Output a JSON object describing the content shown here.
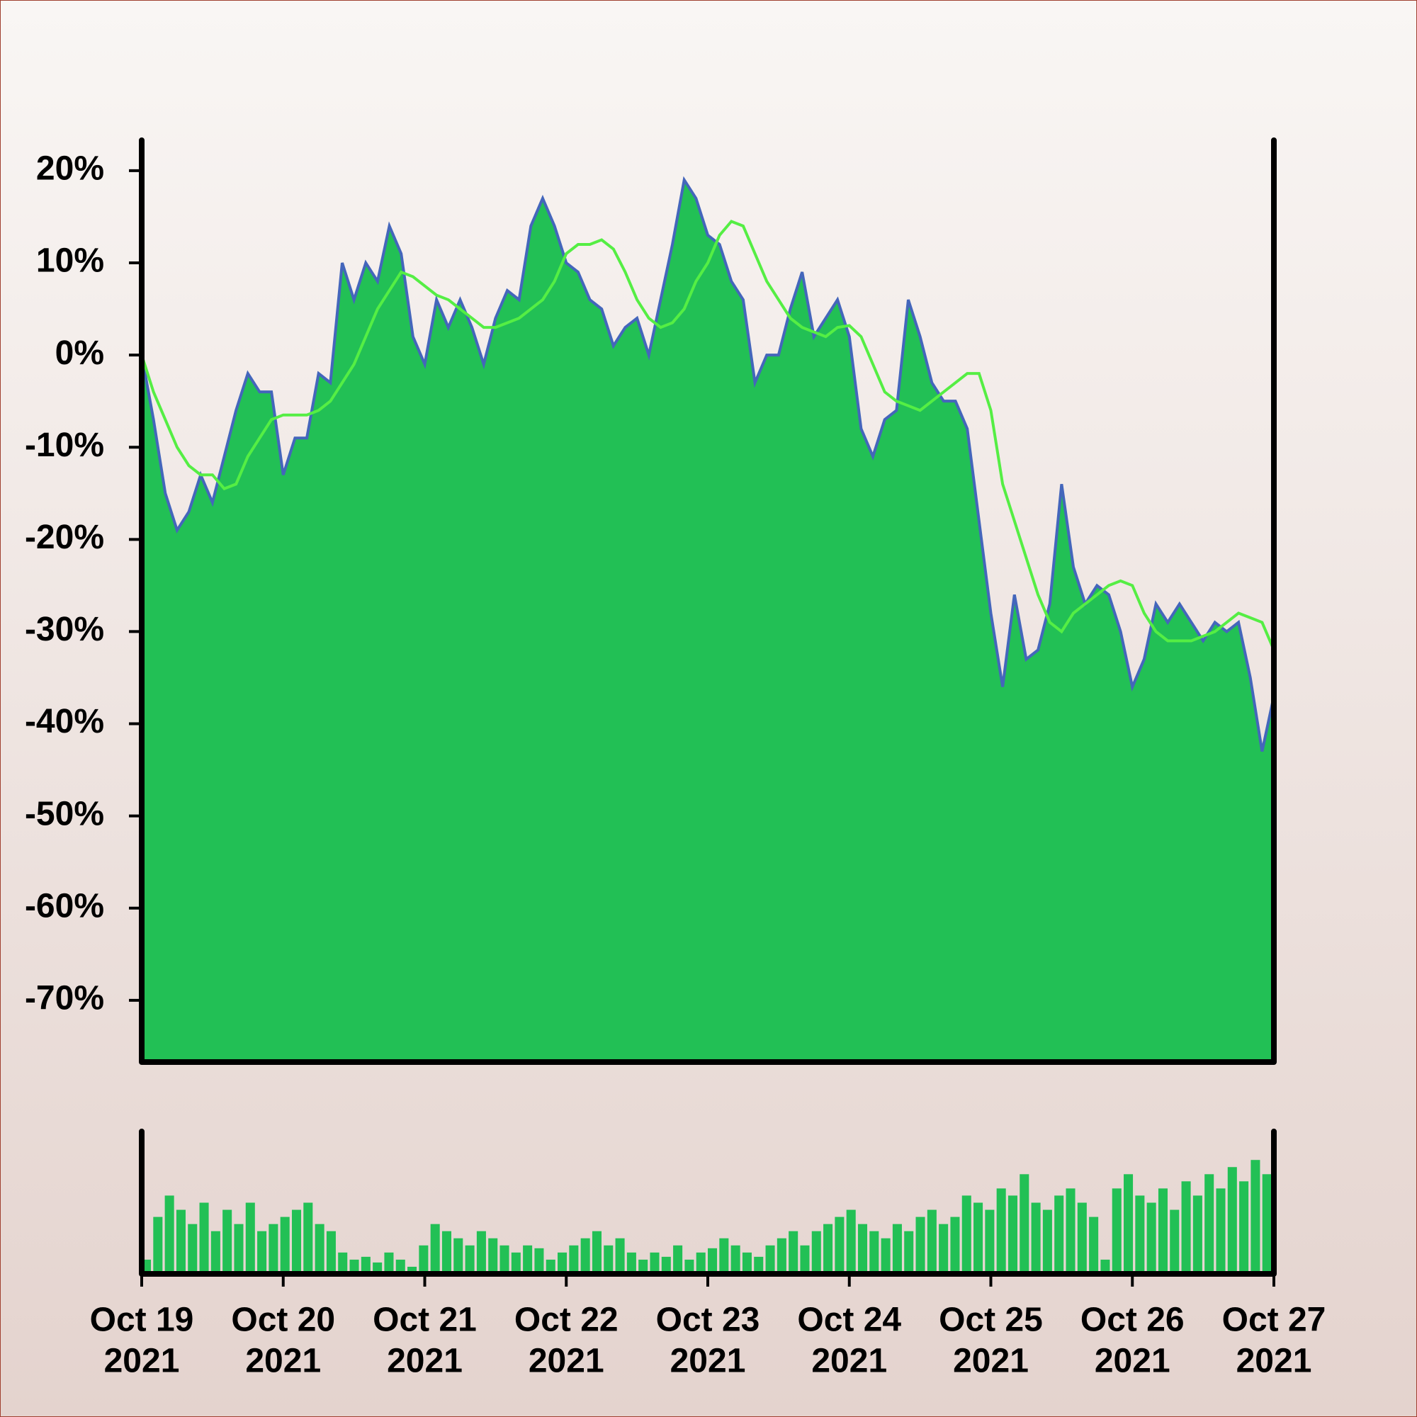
{
  "chart_data": [
    {
      "type": "area",
      "ylim": [
        -76.7,
        23.3
      ],
      "yticks": [
        {
          "value": 20,
          "label": "20%"
        },
        {
          "value": 10,
          "label": "10%"
        },
        {
          "value": 0,
          "label": "0%"
        },
        {
          "value": -10,
          "label": "-10%"
        },
        {
          "value": -20,
          "label": "-20%"
        },
        {
          "value": -30,
          "label": "-30%"
        },
        {
          "value": -40,
          "label": "-40%"
        },
        {
          "value": -50,
          "label": "-50%"
        },
        {
          "value": -60,
          "label": "-60%"
        },
        {
          "value": -70,
          "label": "-70%"
        }
      ],
      "color": "#22c055",
      "line_color": "#4466bb",
      "ma_color": "#55ee44",
      "values": [
        0,
        -7,
        -15,
        -19,
        -17,
        -13,
        -16,
        -11,
        -6,
        -2,
        -4,
        -4,
        -13,
        -9,
        -9,
        -2,
        -3,
        10,
        6,
        10,
        8,
        14,
        11,
        2,
        -1,
        6,
        3,
        6,
        3,
        -1,
        4,
        7,
        6,
        14,
        17,
        14,
        10,
        9,
        6,
        5,
        1,
        3,
        4,
        0,
        6,
        12,
        19,
        17,
        13,
        12,
        8,
        6,
        -3,
        0,
        0,
        5,
        9,
        2,
        4,
        6,
        2,
        -8,
        -11,
        -7,
        -6,
        6,
        2,
        -3,
        -5,
        -5,
        -8,
        -18,
        -28,
        -36,
        -26,
        -33,
        -32,
        -27,
        -14,
        -23,
        -27,
        -25,
        -26,
        -30,
        -36,
        -33,
        -27,
        -29,
        -27,
        -29,
        -31,
        -29,
        -30,
        -29,
        -35,
        -43,
        -37
      ],
      "ma_values": [
        0,
        -4,
        -7,
        -10,
        -12,
        -13,
        -13,
        -14.5,
        -14,
        -11,
        -9,
        -7,
        -6.5,
        -6.5,
        -6.5,
        -6,
        -5,
        -3,
        -1,
        2,
        5,
        7,
        9,
        8.5,
        7.5,
        6.5,
        6,
        5,
        4,
        3,
        3,
        3.5,
        4,
        5,
        6,
        8,
        11,
        12,
        12,
        12.5,
        11.5,
        9,
        6,
        4,
        3,
        3.5,
        5,
        8,
        10,
        13,
        14.5,
        14,
        11,
        8,
        6,
        4,
        3,
        2.5,
        2,
        3,
        3.2,
        2,
        -1,
        -4,
        -5,
        -5.5,
        -6,
        -5,
        -4,
        -3,
        -2,
        -2,
        -6,
        -14,
        -18,
        -22,
        -26,
        -29,
        -30,
        -28,
        -27,
        -26,
        -25,
        -24.5,
        -25,
        -28,
        -30,
        -31,
        -31,
        -31,
        -30.5,
        -30,
        -29,
        -28,
        -28.5,
        -29,
        -32
      ]
    },
    {
      "type": "bar",
      "ylim": [
        0,
        100
      ],
      "color": "#22c055",
      "values": [
        10,
        40,
        55,
        45,
        35,
        50,
        30,
        45,
        35,
        50,
        30,
        35,
        40,
        45,
        50,
        35,
        30,
        15,
        10,
        12,
        8,
        15,
        10,
        5,
        20,
        35,
        30,
        25,
        20,
        30,
        25,
        20,
        15,
        20,
        18,
        10,
        15,
        20,
        25,
        30,
        20,
        25,
        15,
        10,
        15,
        12,
        20,
        10,
        15,
        18,
        25,
        20,
        15,
        12,
        20,
        25,
        30,
        20,
        30,
        35,
        40,
        45,
        35,
        30,
        25,
        35,
        30,
        40,
        45,
        35,
        40,
        55,
        50,
        45,
        60,
        55,
        70,
        50,
        45,
        55,
        60,
        50,
        40,
        10,
        60,
        70,
        55,
        50,
        60,
        45,
        65,
        55,
        70,
        60,
        75,
        65,
        80,
        70
      ],
      "x_labels": [
        [
          "Oct 19",
          "2021"
        ],
        [
          "Oct 20",
          "2021"
        ],
        [
          "Oct 21",
          "2021"
        ],
        [
          "Oct 22",
          "2021"
        ],
        [
          "Oct 23",
          "2021"
        ],
        [
          "Oct 24",
          "2021"
        ],
        [
          "Oct 25",
          "2021"
        ],
        [
          "Oct 26",
          "2021"
        ],
        [
          "Oct 27",
          "2021"
        ]
      ]
    }
  ]
}
